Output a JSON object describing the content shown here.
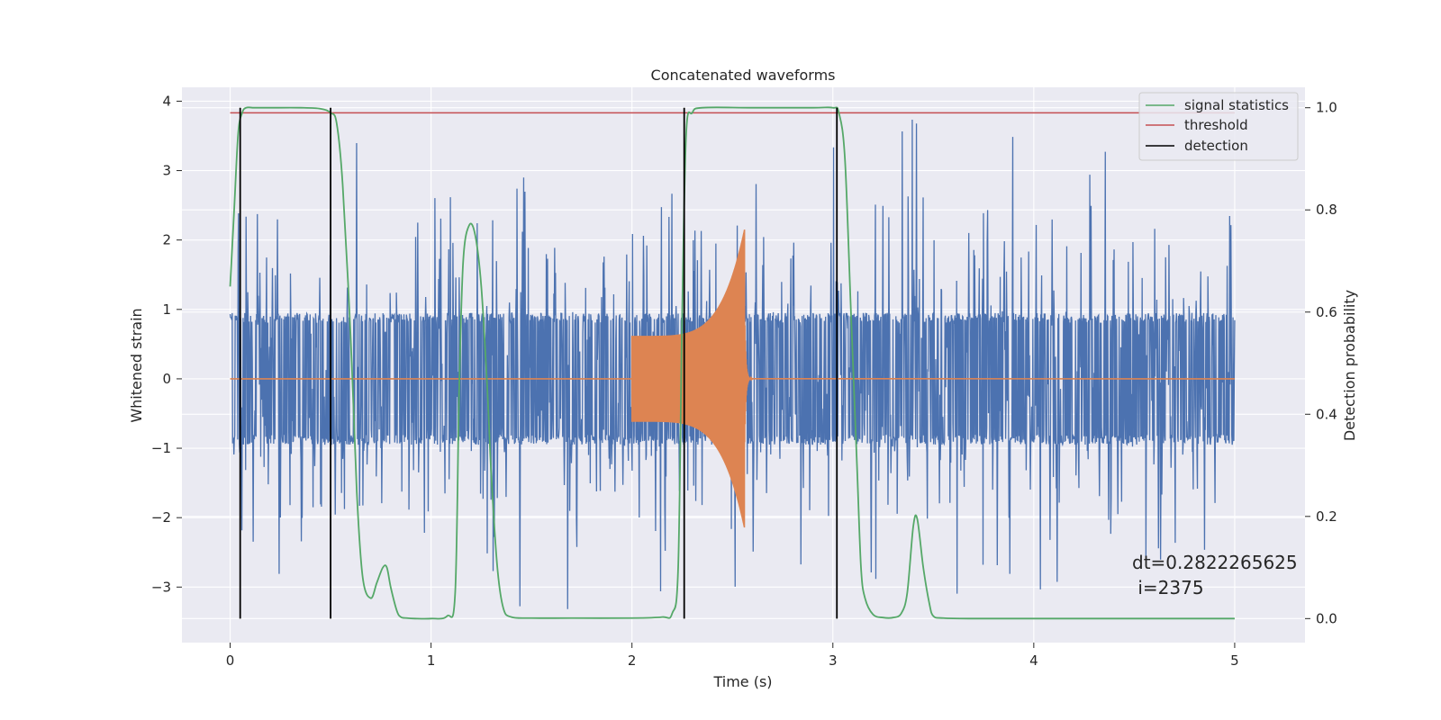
{
  "chart_data": {
    "type": "line",
    "title": "Concatenated waveforms",
    "xlabel": "Time (s)",
    "ylabel": "Whitened strain",
    "ylabel_right": "Detection probability",
    "xlim": [
      -0.24,
      5.35
    ],
    "ylim": [
      -3.8,
      4.2
    ],
    "ylim_right": [
      -0.047,
      1.04
    ],
    "x_ticks": [
      0,
      1,
      2,
      3,
      4,
      5
    ],
    "y_ticks": [
      -3,
      -2,
      -1,
      0,
      1,
      2,
      3,
      4
    ],
    "y_ticks_right": [
      0.0,
      0.2,
      0.4,
      0.6,
      0.8,
      1.0
    ],
    "x_tick_labels": [
      "0",
      "1",
      "2",
      "3",
      "4",
      "5"
    ],
    "y_tick_labels": [
      "−3",
      "−2",
      "−1",
      "0",
      "1",
      "2",
      "3",
      "4"
    ],
    "y_tick_labels_right": [
      "0.0",
      "0.2",
      "0.4",
      "0.6",
      "0.8",
      "1.0"
    ],
    "grid": true,
    "legend_position": "top-right",
    "colors": {
      "background": "#eaeaf2",
      "grid": "#ffffff",
      "strain": "#4c72b0",
      "injection": "#dd8452",
      "signal_statistics": "#55a868",
      "threshold": "#c44e52",
      "detection": "#000000"
    },
    "series": [
      {
        "name": "signal statistics",
        "axis": "right",
        "x": [
          0.0,
          0.02,
          0.04,
          0.06,
          0.08,
          0.12,
          0.2,
          0.35,
          0.45,
          0.5,
          0.53,
          0.56,
          0.6,
          0.63,
          0.66,
          0.7,
          0.73,
          0.76,
          0.78,
          0.8,
          0.83,
          0.85,
          0.88,
          0.92,
          1.0,
          1.08,
          1.12,
          1.14,
          1.16,
          1.19,
          1.22,
          1.25,
          1.28,
          1.3,
          1.33,
          1.36,
          1.4,
          1.5,
          1.7,
          2.0,
          2.15,
          2.2,
          2.23,
          2.25,
          2.27,
          2.3,
          2.35,
          2.6,
          2.9,
          3.0,
          3.03,
          3.06,
          3.09,
          3.12,
          3.14,
          3.16,
          3.2,
          3.25,
          3.3,
          3.34,
          3.37,
          3.4,
          3.42,
          3.45,
          3.48,
          3.5,
          3.55,
          3.7,
          4.0,
          4.5,
          5.0
        ],
        "values": [
          0.65,
          0.8,
          0.95,
          0.99,
          1.0,
          1.0,
          1.0,
          1.0,
          0.998,
          0.99,
          0.97,
          0.85,
          0.55,
          0.25,
          0.08,
          0.04,
          0.07,
          0.1,
          0.1,
          0.06,
          0.015,
          0.003,
          0.001,
          0.0,
          0.0,
          0.005,
          0.05,
          0.45,
          0.7,
          0.77,
          0.75,
          0.65,
          0.45,
          0.28,
          0.1,
          0.02,
          0.003,
          0.001,
          0.001,
          0.001,
          0.003,
          0.01,
          0.1,
          0.6,
          0.95,
          0.99,
          1.0,
          1.0,
          1.0,
          1.0,
          0.99,
          0.9,
          0.6,
          0.3,
          0.1,
          0.04,
          0.008,
          0.002,
          0.002,
          0.01,
          0.05,
          0.18,
          0.195,
          0.1,
          0.03,
          0.005,
          0.001,
          0.0,
          0.0,
          0.0,
          0.0
        ]
      },
      {
        "name": "threshold",
        "axis": "right",
        "x": [
          0.0,
          5.0
        ],
        "values": [
          0.99,
          0.99
        ]
      },
      {
        "name": "detection",
        "axis": "right",
        "x": [
          0.05,
          0.5,
          2.26,
          3.02
        ],
        "values": [
          1.0,
          1.0,
          1.0,
          1.0
        ]
      }
    ],
    "strain_noise": {
      "axis": "left",
      "x_range": [
        0.0,
        5.0
      ],
      "core_amplitude": 0.95,
      "spike_max": 3.85,
      "spike_min": -3.4
    },
    "injection_chirp": {
      "axis": "left",
      "x_start": 2.0,
      "x_merger": 2.56,
      "amplitude_start": 0.62,
      "amplitude_peak": 2.15
    },
    "annotations": [
      "dt=0.2822265625",
      " i=2375"
    ]
  }
}
